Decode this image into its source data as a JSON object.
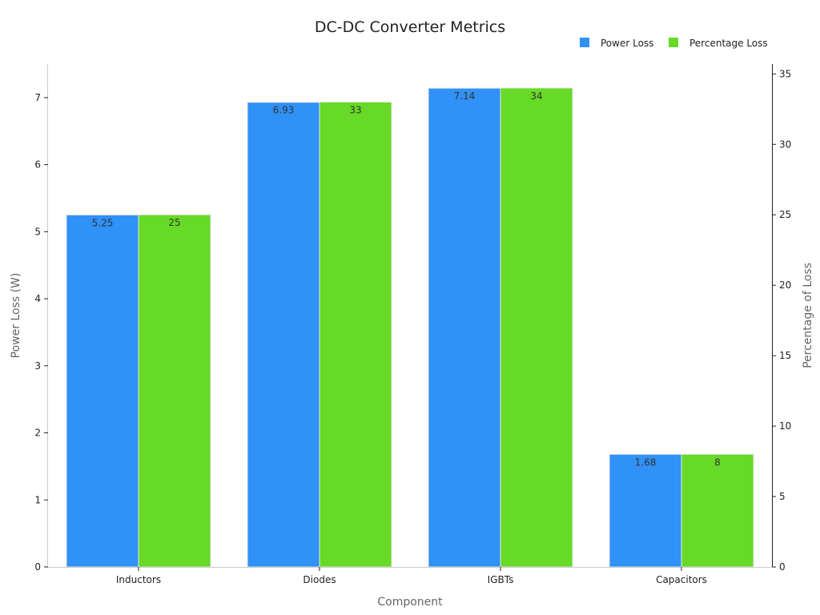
{
  "chart_data": {
    "type": "bar",
    "title": "DC-DC Converter Metrics",
    "xlabel": "Component",
    "ylabel": "Power Loss (W)",
    "ylabel_right": "Percentage of Loss",
    "categories": [
      "Inductors",
      "Diodes",
      "IGBTs",
      "Capacitors"
    ],
    "series": [
      {
        "name": "Power Loss",
        "values": [
          5.25,
          6.93,
          7.14,
          1.68
        ],
        "color": "#3091f7",
        "axis": "left",
        "labels": [
          "5.25",
          "6.93",
          "7.14",
          "1.68"
        ]
      },
      {
        "name": "Percentage Loss",
        "values": [
          25,
          33,
          34,
          8
        ],
        "color": "#66da26",
        "axis": "right",
        "labels": [
          "25",
          "33",
          "34",
          "8"
        ]
      }
    ],
    "ylim": [
      0,
      7.5
    ],
    "ylim_right": [
      0,
      35.7
    ],
    "yticks": [
      "0",
      "1",
      "2",
      "3",
      "4",
      "5",
      "6",
      "7"
    ],
    "yticks_right": [
      "0",
      "5",
      "10",
      "15",
      "20",
      "25",
      "30",
      "35"
    ],
    "grid": false,
    "legend_position": "top-right"
  }
}
